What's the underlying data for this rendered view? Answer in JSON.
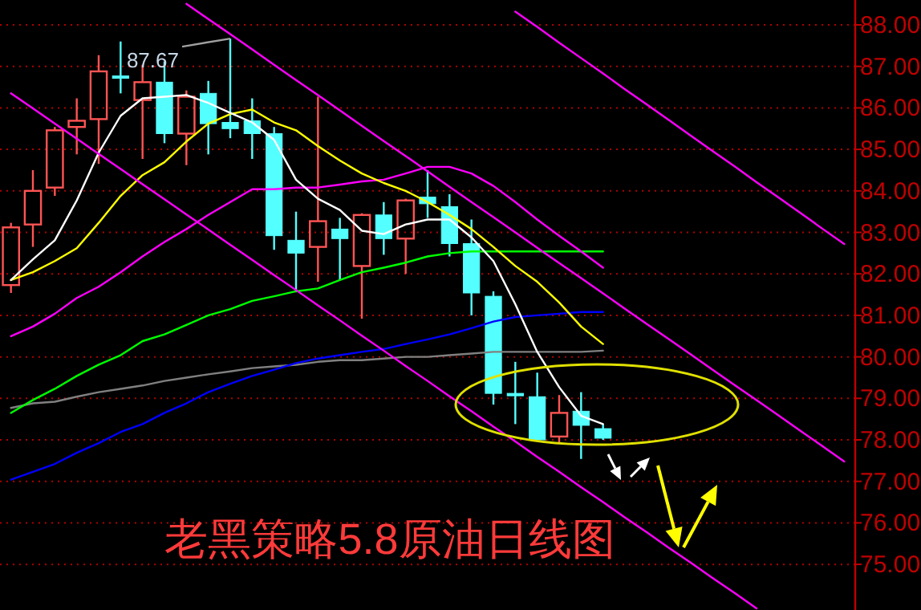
{
  "chart_data": {
    "type": "candlestick",
    "categories": [
      null,
      null,
      null,
      null,
      null,
      null,
      null,
      null,
      null,
      null,
      null,
      null,
      null,
      null,
      null,
      null,
      null,
      null,
      null,
      null,
      null,
      null,
      null,
      null,
      null,
      null,
      null,
      null,
      null,
      null,
      null,
      null,
      null,
      null,
      null,
      null,
      null,
      null,
      null
    ],
    "ohlc": [
      [
        81.73,
        83.23,
        81.54,
        83.12
      ],
      [
        83.19,
        84.5,
        82.65,
        84.0
      ],
      [
        84.08,
        85.54,
        83.88,
        85.46
      ],
      [
        85.54,
        86.23,
        84.88,
        85.69
      ],
      [
        85.73,
        87.27,
        84.65,
        86.88
      ],
      [
        86.77,
        87.6,
        86.35,
        86.73
      ],
      [
        86.19,
        87.04,
        84.77,
        86.62
      ],
      [
        86.62,
        87.12,
        85.15,
        85.38
      ],
      [
        85.38,
        86.42,
        84.62,
        86.27
      ],
      [
        86.35,
        86.65,
        84.88,
        85.62
      ],
      [
        85.65,
        87.67,
        85.27,
        85.5
      ],
      [
        85.69,
        86.23,
        84.77,
        85.38
      ],
      [
        85.38,
        85.54,
        82.58,
        82.92
      ],
      [
        82.81,
        83.5,
        81.58,
        82.5
      ],
      [
        82.65,
        86.27,
        81.81,
        83.27
      ],
      [
        83.08,
        83.35,
        81.85,
        82.85
      ],
      [
        82.19,
        83.46,
        80.92,
        83.42
      ],
      [
        83.42,
        83.73,
        82.46,
        82.85
      ],
      [
        82.85,
        83.81,
        82.0,
        83.77
      ],
      [
        83.85,
        84.5,
        83.35,
        83.69
      ],
      [
        83.62,
        83.92,
        82.42,
        82.73
      ],
      [
        82.73,
        83.31,
        81.0,
        81.54
      ],
      [
        81.46,
        81.58,
        78.85,
        79.12
      ],
      [
        79.12,
        79.88,
        78.38,
        79.08
      ],
      [
        79.04,
        79.62,
        78.0,
        78.0
      ],
      [
        78.08,
        79.08,
        77.92,
        78.65
      ],
      [
        78.69,
        79.15,
        77.54,
        78.35
      ],
      [
        78.27,
        78.38,
        78.0,
        78.04
      ],
      null,
      null,
      null,
      null,
      null,
      null,
      null,
      null,
      null,
      null,
      null
    ],
    "colors": [
      "#ff5454",
      "#ff5454",
      "#ff5454",
      "#ff5454",
      "#ff5454",
      "#54ffff",
      "#ff5454",
      "#54ffff",
      "#ff5454",
      "#54ffff",
      "#54ffff",
      "#54ffff",
      "#54ffff",
      "#54ffff",
      "#ff5454",
      "#54ffff",
      "#ff5454",
      "#54ffff",
      "#ff5454",
      "#54ffff",
      "#54ffff",
      "#54ffff",
      "#54ffff",
      "#54ffff",
      "#54ffff",
      "#ff5454",
      "#54ffff",
      "#54ffff",
      null,
      null,
      null,
      null,
      null,
      null,
      null,
      null,
      null,
      null,
      null
    ],
    "series": [
      {
        "type": "line",
        "color": "#808080",
        "values": [
          78.77,
          78.88,
          78.92,
          79.04,
          79.15,
          79.23,
          79.31,
          79.42,
          79.5,
          79.58,
          79.65,
          79.73,
          79.77,
          79.81,
          79.88,
          79.92,
          79.92,
          79.96,
          80.0,
          80.0,
          80.04,
          80.08,
          80.12,
          80.12,
          80.12,
          80.12,
          80.12,
          80.15,
          null,
          null,
          null,
          null,
          null,
          null,
          null,
          null,
          null,
          null,
          null
        ]
      },
      {
        "type": "line",
        "color": "#0000ff",
        "values": [
          77.04,
          77.23,
          77.42,
          77.69,
          77.92,
          78.19,
          78.38,
          78.65,
          78.88,
          79.15,
          79.35,
          79.54,
          79.69,
          79.85,
          79.96,
          80.04,
          80.12,
          80.19,
          80.31,
          80.42,
          80.54,
          80.69,
          80.85,
          80.96,
          81.0,
          81.04,
          81.08,
          81.08,
          null,
          null,
          null,
          null,
          null,
          null,
          null,
          null,
          null,
          null,
          null
        ]
      },
      {
        "type": "line",
        "color": "#00ff00",
        "values": [
          78.65,
          78.96,
          79.23,
          79.54,
          79.81,
          80.04,
          80.38,
          80.54,
          80.77,
          81.0,
          81.15,
          81.35,
          81.46,
          81.58,
          81.65,
          81.85,
          82.04,
          82.15,
          82.27,
          82.42,
          82.5,
          82.54,
          82.54,
          82.54,
          82.54,
          82.54,
          82.54,
          82.54,
          null,
          null,
          null,
          null,
          null,
          null,
          null,
          null,
          null,
          null,
          null
        ]
      },
      {
        "type": "line",
        "color": "#ff00ff",
        "values": [
          80.5,
          80.73,
          81.04,
          81.42,
          81.69,
          82.04,
          82.42,
          82.77,
          83.08,
          83.42,
          83.73,
          84.04,
          84.04,
          84.08,
          84.08,
          84.15,
          84.23,
          84.27,
          84.42,
          84.58,
          84.58,
          84.42,
          84.12,
          83.73,
          83.31,
          82.92,
          82.54,
          82.15,
          null,
          null,
          null,
          null,
          null,
          null,
          null,
          null,
          null,
          null,
          null
        ]
      },
      {
        "type": "line",
        "color": "#ffff00",
        "values": [
          81.85,
          82.04,
          82.31,
          82.62,
          83.23,
          83.88,
          84.38,
          84.69,
          85.19,
          85.62,
          85.85,
          85.96,
          85.65,
          85.46,
          85.08,
          84.73,
          84.42,
          84.19,
          84.0,
          83.73,
          83.42,
          83.08,
          82.65,
          82.19,
          81.81,
          81.31,
          80.73,
          80.31,
          null,
          null,
          null,
          null,
          null,
          null,
          null,
          null,
          null,
          null,
          null
        ]
      },
      {
        "type": "line",
        "color": "#ffffff",
        "values": [
          81.85,
          82.35,
          82.81,
          83.77,
          84.92,
          85.81,
          86.23,
          86.27,
          86.31,
          86.12,
          85.88,
          85.65,
          85.23,
          84.27,
          83.81,
          83.54,
          83.04,
          82.96,
          83.19,
          83.31,
          83.31,
          82.88,
          82.31,
          81.27,
          80.12,
          79.27,
          78.58,
          78.38,
          null,
          null,
          null,
          null,
          null,
          null,
          null,
          null,
          null,
          null,
          null
        ]
      },
      {
        "type": "line",
        "color": "#ff00ff",
        "values": [
          86.35,
          85.99,
          85.62,
          85.26,
          84.89,
          84.53,
          84.16,
          83.8,
          83.43,
          83.07,
          82.7,
          82.34,
          81.97,
          81.61,
          81.24,
          80.88,
          80.51,
          80.15,
          79.78,
          79.42,
          79.05,
          78.69,
          78.32,
          77.96,
          77.59,
          77.23,
          76.86,
          76.5,
          76.13,
          75.77,
          75.4,
          75.04,
          74.67,
          74.31,
          73.94,
          null,
          null,
          null,
          null
        ]
      },
      {
        "type": "line",
        "color": "#ff00ff",
        "values": [
          null,
          null,
          null,
          null,
          null,
          null,
          null,
          null,
          88.51,
          88.14,
          87.78,
          87.41,
          87.04,
          86.67,
          86.31,
          85.94,
          85.57,
          85.2,
          84.84,
          84.47,
          84.1,
          83.73,
          83.37,
          83.0,
          82.63,
          82.26,
          81.9,
          81.53,
          81.16,
          80.79,
          80.43,
          80.06,
          79.69,
          79.32,
          78.96,
          78.59,
          78.22,
          77.85,
          77.48
        ]
      },
      {
        "type": "line",
        "color": "#ff00ff",
        "values": [
          null,
          null,
          null,
          null,
          null,
          null,
          null,
          null,
          null,
          null,
          null,
          null,
          null,
          null,
          null,
          null,
          null,
          null,
          null,
          null,
          null,
          null,
          null,
          88.32,
          87.95,
          87.57,
          87.2,
          86.83,
          86.45,
          86.08,
          85.71,
          85.33,
          84.96,
          84.59,
          84.21,
          83.84,
          83.47,
          83.09,
          82.72
        ]
      }
    ],
    "ylim": [
      73.9,
      88.6
    ],
    "yticks": [
      {
        "value": 75,
        "label": "75.00"
      },
      {
        "value": 76,
        "label": "76.00"
      },
      {
        "value": 77,
        "label": "77.00"
      },
      {
        "value": 78,
        "label": "78.00"
      },
      {
        "value": 79,
        "label": "79.00"
      },
      {
        "value": 80,
        "label": "80.00"
      },
      {
        "value": 81,
        "label": "81.00"
      },
      {
        "value": 82,
        "label": "82.00"
      },
      {
        "value": 83,
        "label": "83.00"
      },
      {
        "value": 84,
        "label": "84.00"
      },
      {
        "value": 85,
        "label": "85.00"
      },
      {
        "value": 86,
        "label": "86.00"
      },
      {
        "value": 87,
        "label": "87.00"
      },
      {
        "value": 88,
        "label": "88.00"
      }
    ],
    "grid": "y",
    "tick_labels": "y",
    "annotations": [
      "87.67",
      "老黑策略5.8原油日线图"
    ]
  }
}
